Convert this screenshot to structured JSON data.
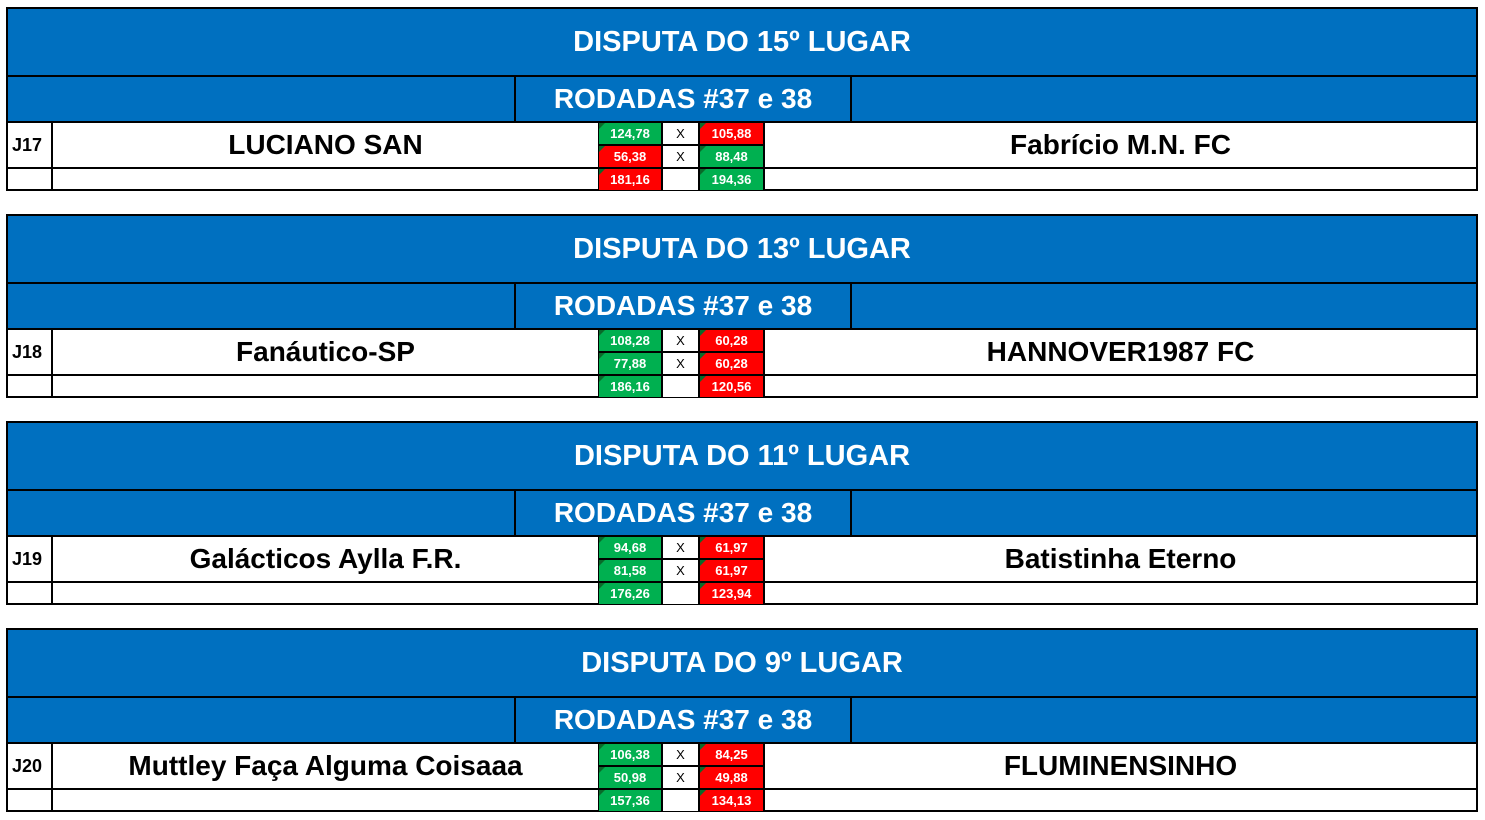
{
  "colors": {
    "header": "#0070C0",
    "win": "#00B050",
    "lose": "#FF0000"
  },
  "vs_symbol": "X",
  "matches": [
    {
      "title": "DISPUTA DO 15º LUGAR",
      "rounds": "RODADAS #37 e 38",
      "id": "J17",
      "home": "LUCIANO SAN",
      "away": "Fabrício M.N. FC",
      "rows": [
        {
          "home": "124,78",
          "home_status": "win",
          "away": "105,88",
          "away_status": "lose"
        },
        {
          "home": "56,38",
          "home_status": "lose",
          "away": "88,48",
          "away_status": "win"
        }
      ],
      "total": {
        "home": "181,16",
        "home_status": "lose",
        "away": "194,36",
        "away_status": "win"
      }
    },
    {
      "title": "DISPUTA DO 13º LUGAR",
      "rounds": "RODADAS #37 e 38",
      "id": "J18",
      "home": "Fanáutico-SP",
      "away": "HANNOVER1987 FC",
      "rows": [
        {
          "home": "108,28",
          "home_status": "win",
          "away": "60,28",
          "away_status": "lose"
        },
        {
          "home": "77,88",
          "home_status": "win",
          "away": "60,28",
          "away_status": "lose"
        }
      ],
      "total": {
        "home": "186,16",
        "home_status": "win",
        "away": "120,56",
        "away_status": "lose"
      }
    },
    {
      "title": "DISPUTA DO 11º LUGAR",
      "rounds": "RODADAS #37 e 38",
      "id": "J19",
      "home": "Galácticos Aylla F.R.",
      "away": "Batistinha Eterno",
      "rows": [
        {
          "home": "94,68",
          "home_status": "win",
          "away": "61,97",
          "away_status": "lose"
        },
        {
          "home": "81,58",
          "home_status": "win",
          "away": "61,97",
          "away_status": "lose"
        }
      ],
      "total": {
        "home": "176,26",
        "home_status": "win",
        "away": "123,94",
        "away_status": "lose"
      }
    },
    {
      "title": "DISPUTA DO 9º LUGAR",
      "rounds": "RODADAS #37 e 38",
      "id": "J20",
      "home": "Muttley Faça Alguma Coisaaa",
      "away": "FLUMINENSINHO",
      "rows": [
        {
          "home": "106,38",
          "home_status": "win",
          "away": "84,25",
          "away_status": "lose"
        },
        {
          "home": "50,98",
          "home_status": "win",
          "away": "49,88",
          "away_status": "lose"
        }
      ],
      "total": {
        "home": "157,36",
        "home_status": "win",
        "away": "134,13",
        "away_status": "lose"
      }
    }
  ]
}
